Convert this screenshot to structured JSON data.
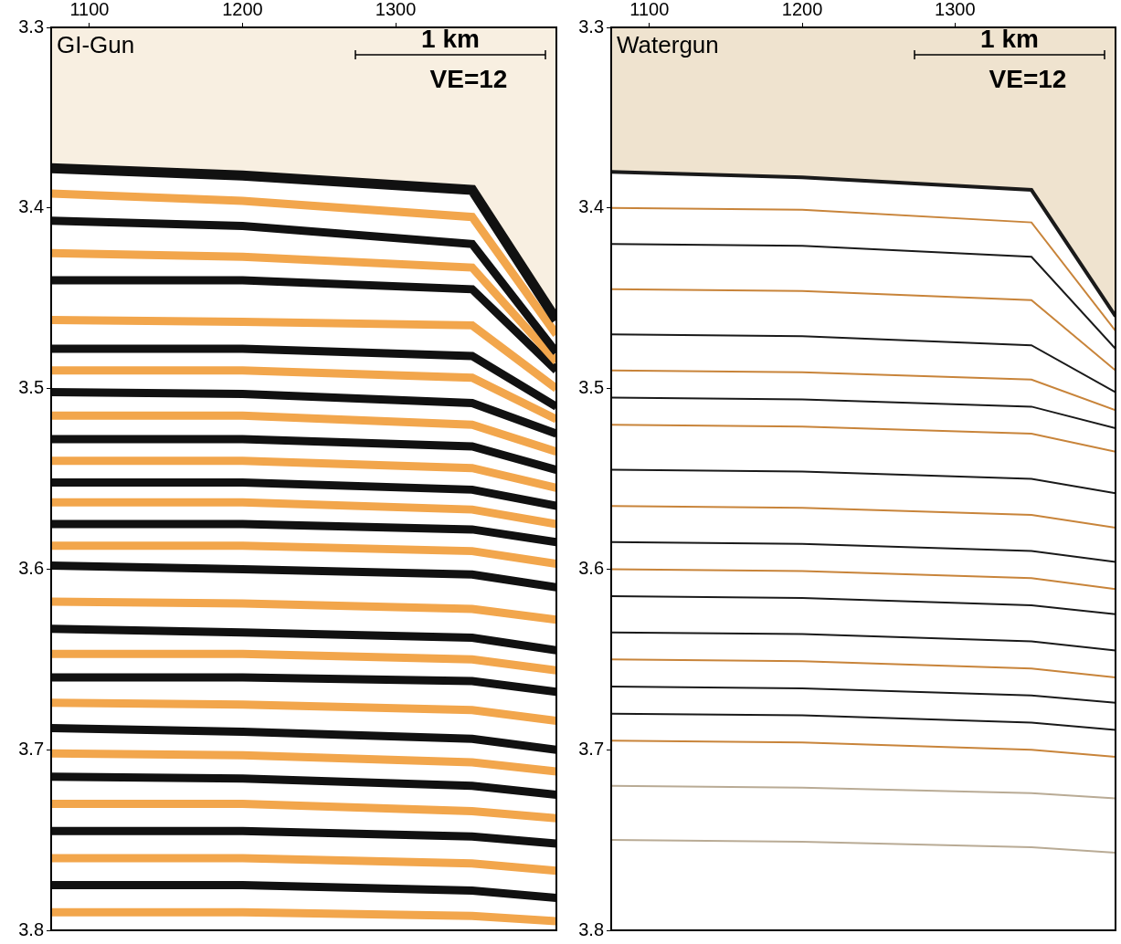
{
  "chart_data": [
    {
      "type": "line",
      "title": "GI-Gun",
      "annotations": [
        "1 km",
        "VE=12"
      ],
      "x": [
        1075,
        1200,
        1350,
        1405
      ],
      "xlim": [
        1075,
        1405
      ],
      "xticks": [
        1100,
        1200,
        1300
      ],
      "ylim": [
        3.3,
        3.8
      ],
      "yticks": [
        3.3,
        3.4,
        3.5,
        3.6,
        3.7,
        3.8
      ],
      "grid": false,
      "series": [
        {
          "color": "#111111",
          "values": [
            3.378,
            3.382,
            3.39,
            3.462
          ]
        },
        {
          "color": "#f2a64c",
          "values": [
            3.392,
            3.396,
            3.405,
            3.47
          ]
        },
        {
          "color": "#111111",
          "values": [
            3.407,
            3.41,
            3.42,
            3.48
          ]
        },
        {
          "color": "#f2a64c",
          "values": [
            3.425,
            3.427,
            3.433,
            3.485
          ]
        },
        {
          "color": "#111111",
          "values": [
            3.44,
            3.44,
            3.445,
            3.49
          ]
        },
        {
          "color": "#f2a64c",
          "values": [
            3.462,
            3.463,
            3.465,
            3.5
          ]
        },
        {
          "color": "#111111",
          "values": [
            3.478,
            3.478,
            3.482,
            3.51
          ]
        },
        {
          "color": "#f2a64c",
          "values": [
            3.49,
            3.49,
            3.494,
            3.517
          ]
        },
        {
          "color": "#111111",
          "values": [
            3.502,
            3.503,
            3.508,
            3.525
          ]
        },
        {
          "color": "#f2a64c",
          "values": [
            3.515,
            3.515,
            3.52,
            3.535
          ]
        },
        {
          "color": "#111111",
          "values": [
            3.528,
            3.528,
            3.532,
            3.545
          ]
        },
        {
          "color": "#f2a64c",
          "values": [
            3.54,
            3.54,
            3.544,
            3.555
          ]
        },
        {
          "color": "#111111",
          "values": [
            3.552,
            3.552,
            3.556,
            3.565
          ]
        },
        {
          "color": "#f2a64c",
          "values": [
            3.563,
            3.563,
            3.567,
            3.575
          ]
        },
        {
          "color": "#111111",
          "values": [
            3.575,
            3.575,
            3.578,
            3.585
          ]
        },
        {
          "color": "#f2a64c",
          "values": [
            3.587,
            3.587,
            3.59,
            3.597
          ]
        },
        {
          "color": "#111111",
          "values": [
            3.598,
            3.6,
            3.603,
            3.61
          ]
        },
        {
          "color": "#f2a64c",
          "values": [
            3.618,
            3.619,
            3.622,
            3.628
          ]
        },
        {
          "color": "#111111",
          "values": [
            3.633,
            3.635,
            3.638,
            3.645
          ]
        },
        {
          "color": "#f2a64c",
          "values": [
            3.647,
            3.647,
            3.65,
            3.656
          ]
        },
        {
          "color": "#111111",
          "values": [
            3.66,
            3.66,
            3.662,
            3.668
          ]
        },
        {
          "color": "#f2a64c",
          "values": [
            3.674,
            3.675,
            3.678,
            3.684
          ]
        },
        {
          "color": "#111111",
          "values": [
            3.688,
            3.69,
            3.694,
            3.7
          ]
        },
        {
          "color": "#f2a64c",
          "values": [
            3.702,
            3.703,
            3.707,
            3.712
          ]
        },
        {
          "color": "#111111",
          "values": [
            3.715,
            3.716,
            3.72,
            3.725
          ]
        },
        {
          "color": "#f2a64c",
          "values": [
            3.73,
            3.73,
            3.734,
            3.738
          ]
        },
        {
          "color": "#111111",
          "values": [
            3.745,
            3.745,
            3.748,
            3.752
          ]
        },
        {
          "color": "#f2a64c",
          "values": [
            3.76,
            3.76,
            3.763,
            3.767
          ]
        },
        {
          "color": "#111111",
          "values": [
            3.775,
            3.775,
            3.778,
            3.782
          ]
        },
        {
          "color": "#f2a64c",
          "values": [
            3.79,
            3.79,
            3.792,
            3.795
          ]
        }
      ]
    },
    {
      "type": "line",
      "title": "Watergun",
      "annotations": [
        "1 km",
        "VE=12"
      ],
      "x": [
        1075,
        1200,
        1350,
        1405
      ],
      "xlim": [
        1075,
        1405
      ],
      "xticks": [
        1100,
        1200,
        1300
      ],
      "ylim": [
        3.3,
        3.8
      ],
      "yticks": [
        3.3,
        3.4,
        3.5,
        3.6,
        3.7,
        3.8
      ],
      "grid": false,
      "series": [
        {
          "color": "#1a1a1a",
          "values": [
            3.38,
            3.383,
            3.39,
            3.46
          ]
        },
        {
          "color": "#c8843a",
          "values": [
            3.4,
            3.401,
            3.408,
            3.468
          ]
        },
        {
          "color": "#1a1a1a",
          "values": [
            3.42,
            3.421,
            3.427,
            3.478
          ]
        },
        {
          "color": "#c8843a",
          "values": [
            3.445,
            3.446,
            3.451,
            3.49
          ]
        },
        {
          "color": "#1a1a1a",
          "values": [
            3.47,
            3.471,
            3.476,
            3.502
          ]
        },
        {
          "color": "#c8843a",
          "values": [
            3.49,
            3.491,
            3.495,
            3.512
          ]
        },
        {
          "color": "#1a1a1a",
          "values": [
            3.505,
            3.506,
            3.51,
            3.522
          ]
        },
        {
          "color": "#c8843a",
          "values": [
            3.52,
            3.521,
            3.525,
            3.535
          ]
        },
        {
          "color": "#1a1a1a",
          "values": [
            3.545,
            3.546,
            3.55,
            3.558
          ]
        },
        {
          "color": "#c8843a",
          "values": [
            3.565,
            3.566,
            3.57,
            3.577
          ]
        },
        {
          "color": "#1a1a1a",
          "values": [
            3.585,
            3.586,
            3.59,
            3.596
          ]
        },
        {
          "color": "#c8843a",
          "values": [
            3.6,
            3.601,
            3.605,
            3.611
          ]
        },
        {
          "color": "#1a1a1a",
          "values": [
            3.615,
            3.616,
            3.62,
            3.625
          ]
        },
        {
          "color": "#1a1a1a",
          "values": [
            3.635,
            3.636,
            3.64,
            3.645
          ]
        },
        {
          "color": "#c8843a",
          "values": [
            3.65,
            3.651,
            3.655,
            3.66
          ]
        },
        {
          "color": "#1a1a1a",
          "values": [
            3.665,
            3.666,
            3.67,
            3.674
          ]
        },
        {
          "color": "#1a1a1a",
          "values": [
            3.68,
            3.681,
            3.685,
            3.689
          ]
        },
        {
          "color": "#c8843a",
          "values": [
            3.695,
            3.696,
            3.7,
            3.704
          ]
        },
        {
          "color": "#b9ab95",
          "values": [
            3.72,
            3.721,
            3.724,
            3.727
          ]
        },
        {
          "color": "#b9ab95",
          "values": [
            3.75,
            3.751,
            3.754,
            3.757
          ]
        }
      ]
    }
  ]
}
